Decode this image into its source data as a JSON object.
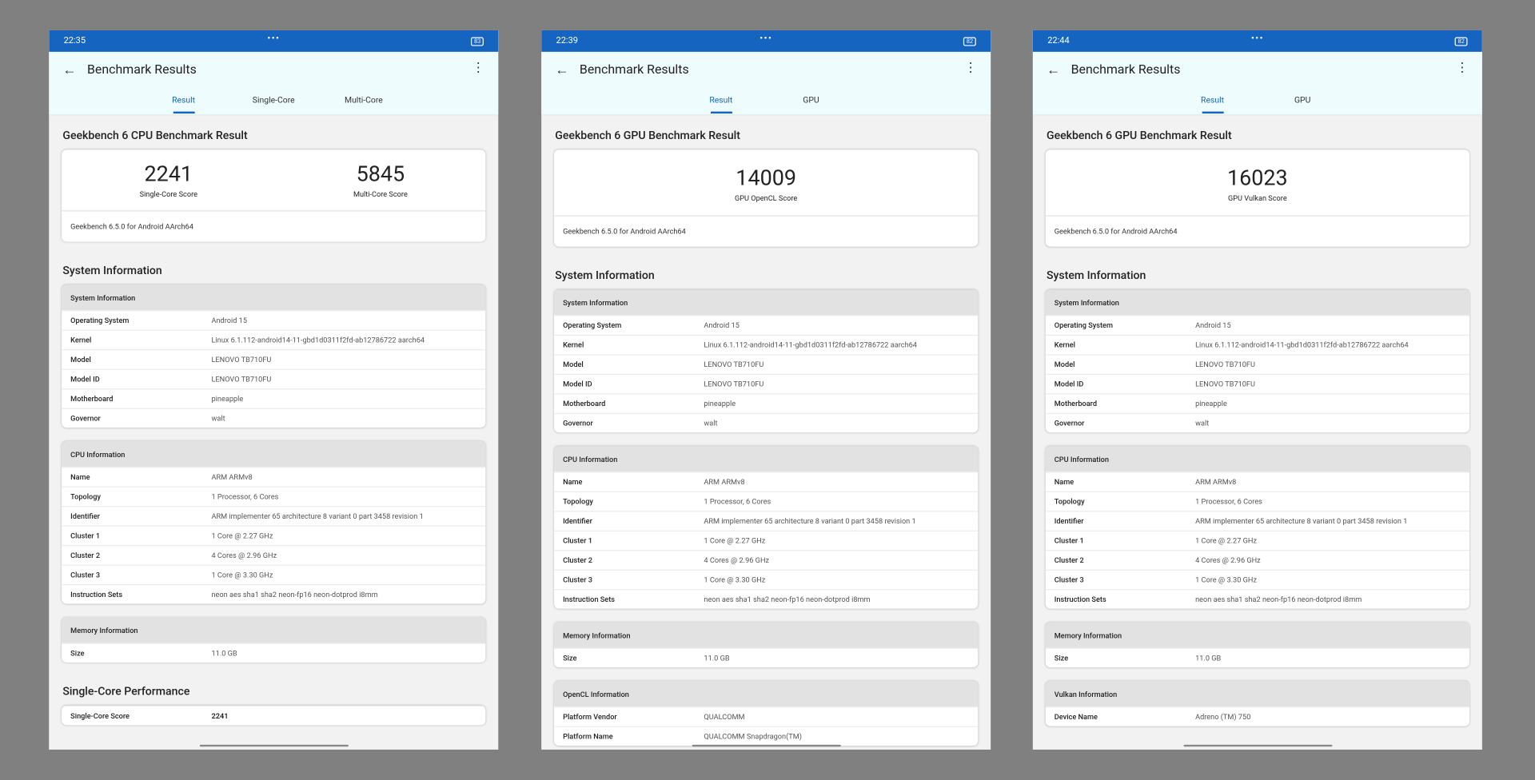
{
  "panels": [
    {
      "status_time": "22:35",
      "battery": "83",
      "title": "Benchmark Results",
      "tabs": [
        "Result",
        "Single-Core",
        "Multi-Core"
      ],
      "heading": "Geekbench 6 CPU Benchmark Result",
      "scores": [
        {
          "value": 2241,
          "label": "Single-Core Score"
        },
        {
          "value": 5845,
          "label": "Multi-Core Score"
        }
      ],
      "version": "Geekbench 6.5.0 for Android AArch64",
      "sections": [
        {
          "title": "System Information",
          "groups": [
            {
              "title": "System Information",
              "rows": [
                [
                  "Operating System",
                  "Android 15"
                ],
                [
                  "Kernel",
                  "Linux 6.1.112-android14-11-gbd1d0311f2fd-ab12786722 aarch64"
                ],
                [
                  "Model",
                  "LENOVO TB710FU"
                ],
                [
                  "Model ID",
                  "LENOVO TB710FU"
                ],
                [
                  "Motherboard",
                  "pineapple"
                ],
                [
                  "Governor",
                  "walt"
                ]
              ]
            },
            {
              "title": "CPU Information",
              "rows": [
                [
                  "Name",
                  "ARM ARMv8"
                ],
                [
                  "Topology",
                  "1 Processor, 6 Cores"
                ],
                [
                  "Identifier",
                  "ARM implementer 65 architecture 8 variant 0 part 3458 revision 1"
                ],
                [
                  "Cluster 1",
                  "1 Core @ 2.27 GHz"
                ],
                [
                  "Cluster 2",
                  "4 Cores @ 2.96 GHz"
                ],
                [
                  "Cluster 3",
                  "1 Core @ 3.30 GHz"
                ],
                [
                  "Instruction Sets",
                  "neon aes sha1 sha2 neon-fp16 neon-dotprod i8mm"
                ]
              ]
            },
            {
              "title": "Memory Information",
              "rows": [
                [
                  "Size",
                  "11.0 GB"
                ]
              ]
            }
          ]
        },
        {
          "title": "Single-Core Performance",
          "groups": [
            {
              "title": null,
              "rows": [
                [
                  "Single-Core Score",
                  2241
                ]
              ]
            }
          ]
        }
      ]
    },
    {
      "status_time": "22:39",
      "battery": "82",
      "title": "Benchmark Results",
      "tabs": [
        "Result",
        "GPU"
      ],
      "heading": "Geekbench 6 GPU Benchmark Result",
      "scores": [
        {
          "value": 14009,
          "label": "GPU OpenCL Score"
        }
      ],
      "version": "Geekbench 6.5.0 for Android AArch64",
      "sections": [
        {
          "title": "System Information",
          "groups": [
            {
              "title": "System Information",
              "rows": [
                [
                  "Operating System",
                  "Android 15"
                ],
                [
                  "Kernel",
                  "Linux 6.1.112-android14-11-gbd1d0311f2fd-ab12786722 aarch64"
                ],
                [
                  "Model",
                  "LENOVO TB710FU"
                ],
                [
                  "Model ID",
                  "LENOVO TB710FU"
                ],
                [
                  "Motherboard",
                  "pineapple"
                ],
                [
                  "Governor",
                  "walt"
                ]
              ]
            },
            {
              "title": "CPU Information",
              "rows": [
                [
                  "Name",
                  "ARM ARMv8"
                ],
                [
                  "Topology",
                  "1 Processor, 6 Cores"
                ],
                [
                  "Identifier",
                  "ARM implementer 65 architecture 8 variant 0 part 3458 revision 1"
                ],
                [
                  "Cluster 1",
                  "1 Core @ 2.27 GHz"
                ],
                [
                  "Cluster 2",
                  "4 Cores @ 2.96 GHz"
                ],
                [
                  "Cluster 3",
                  "1 Core @ 3.30 GHz"
                ],
                [
                  "Instruction Sets",
                  "neon aes sha1 sha2 neon-fp16 neon-dotprod i8mm"
                ]
              ]
            },
            {
              "title": "Memory Information",
              "rows": [
                [
                  "Size",
                  "11.0 GB"
                ]
              ]
            },
            {
              "title": "OpenCL Information",
              "rows": [
                [
                  "Platform Vendor",
                  "QUALCOMM"
                ],
                [
                  "Platform Name",
                  "QUALCOMM Snapdragon(TM)"
                ]
              ]
            }
          ]
        }
      ]
    },
    {
      "status_time": "22:44",
      "battery": "82",
      "title": "Benchmark Results",
      "tabs": [
        "Result",
        "GPU"
      ],
      "heading": "Geekbench 6 GPU Benchmark Result",
      "scores": [
        {
          "value": 16023,
          "label": "GPU Vulkan Score"
        }
      ],
      "version": "Geekbench 6.5.0 for Android AArch64",
      "sections": [
        {
          "title": "System Information",
          "groups": [
            {
              "title": "System Information",
              "rows": [
                [
                  "Operating System",
                  "Android 15"
                ],
                [
                  "Kernel",
                  "Linux 6.1.112-android14-11-gbd1d0311f2fd-ab12786722 aarch64"
                ],
                [
                  "Model",
                  "LENOVO TB710FU"
                ],
                [
                  "Model ID",
                  "LENOVO TB710FU"
                ],
                [
                  "Motherboard",
                  "pineapple"
                ],
                [
                  "Governor",
                  "walt"
                ]
              ]
            },
            {
              "title": "CPU Information",
              "rows": [
                [
                  "Name",
                  "ARM ARMv8"
                ],
                [
                  "Topology",
                  "1 Processor, 6 Cores"
                ],
                [
                  "Identifier",
                  "ARM implementer 65 architecture 8 variant 0 part 3458 revision 1"
                ],
                [
                  "Cluster 1",
                  "1 Core @ 2.27 GHz"
                ],
                [
                  "Cluster 2",
                  "4 Cores @ 2.96 GHz"
                ],
                [
                  "Cluster 3",
                  "1 Core @ 3.30 GHz"
                ],
                [
                  "Instruction Sets",
                  "neon aes sha1 sha2 neon-fp16 neon-dotprod i8mm"
                ]
              ]
            },
            {
              "title": "Memory Information",
              "rows": [
                [
                  "Size",
                  "11.0 GB"
                ]
              ]
            },
            {
              "title": "Vulkan Information",
              "rows": [
                [
                  "Device Name",
                  "Adreno (TM) 750"
                ]
              ]
            }
          ]
        }
      ]
    }
  ]
}
